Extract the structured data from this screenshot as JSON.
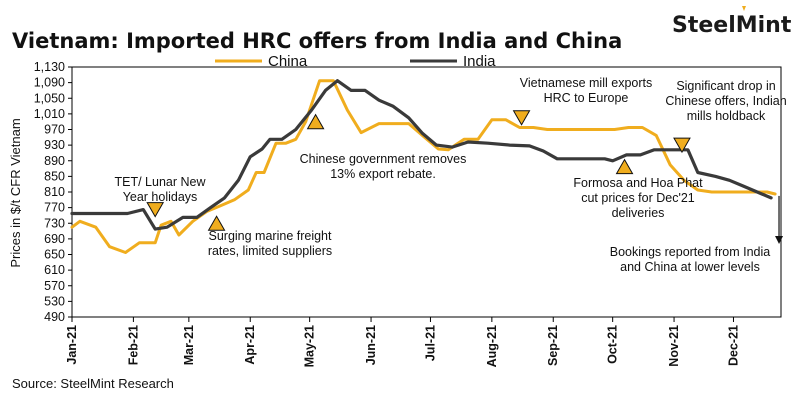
{
  "header": {
    "title": "Vietnam: Imported HRC offers from India and China",
    "brand": "SteelMint"
  },
  "source": "Source: SteelMint Research",
  "colors": {
    "china": "#F0AD1E",
    "india": "#3A3A3A",
    "marker": "#F0AD1E",
    "brand_accent": "#F0AD1E"
  },
  "chart_data": {
    "type": "line",
    "ylabel": "Prices in $/t CFR Vietnam",
    "xlabel": "",
    "ylim": [
      490,
      1130
    ],
    "yticks": [
      490,
      530,
      570,
      610,
      650,
      690,
      730,
      770,
      810,
      850,
      890,
      930,
      970,
      1010,
      1050,
      1090,
      1130
    ],
    "xlim": [
      "2021-01-01",
      "2021-12-25"
    ],
    "xticks": [
      "Jan-21",
      "Feb-21",
      "Mar-21",
      "Apr-21",
      "May-21",
      "Jun-21",
      "Jul-21",
      "Aug-21",
      "Sep-21",
      "Oct-21",
      "Nov-21",
      "Dec-21"
    ],
    "xtick_dates": [
      "2021-01-01",
      "2021-02-01",
      "2021-03-01",
      "2021-04-01",
      "2021-05-01",
      "2021-06-01",
      "2021-07-01",
      "2021-08-01",
      "2021-09-01",
      "2021-10-01",
      "2021-11-01",
      "2021-12-01"
    ],
    "legend": "top-center",
    "grid": false,
    "series": [
      {
        "name": "China",
        "points": [
          [
            "2021-01-01",
            720
          ],
          [
            "2021-01-05",
            735
          ],
          [
            "2021-01-13",
            720
          ],
          [
            "2021-01-20",
            670
          ],
          [
            "2021-01-28",
            655
          ],
          [
            "2021-02-04",
            680
          ],
          [
            "2021-02-12",
            680
          ],
          [
            "2021-02-15",
            725
          ],
          [
            "2021-02-20",
            735
          ],
          [
            "2021-02-24",
            700
          ],
          [
            "2021-03-03",
            735
          ],
          [
            "2021-03-10",
            760
          ],
          [
            "2021-03-17",
            775
          ],
          [
            "2021-03-24",
            790
          ],
          [
            "2021-03-31",
            815
          ],
          [
            "2021-04-04",
            860
          ],
          [
            "2021-04-08",
            860
          ],
          [
            "2021-04-14",
            935
          ],
          [
            "2021-04-19",
            935
          ],
          [
            "2021-04-24",
            945
          ],
          [
            "2021-04-29",
            990
          ],
          [
            "2021-05-06",
            1095
          ],
          [
            "2021-05-13",
            1095
          ],
          [
            "2021-05-20",
            1020
          ],
          [
            "2021-05-27",
            962
          ],
          [
            "2021-06-05",
            985
          ],
          [
            "2021-06-12",
            985
          ],
          [
            "2021-06-20",
            985
          ],
          [
            "2021-06-28",
            950
          ],
          [
            "2021-07-05",
            920
          ],
          [
            "2021-07-10",
            918
          ],
          [
            "2021-07-18",
            945
          ],
          [
            "2021-07-25",
            945
          ],
          [
            "2021-08-01",
            995
          ],
          [
            "2021-08-08",
            995
          ],
          [
            "2021-08-15",
            975
          ],
          [
            "2021-08-22",
            975
          ],
          [
            "2021-08-29",
            970
          ],
          [
            "2021-09-10",
            970
          ],
          [
            "2021-09-25",
            970
          ],
          [
            "2021-10-02",
            970
          ],
          [
            "2021-10-09",
            975
          ],
          [
            "2021-10-16",
            975
          ],
          [
            "2021-10-23",
            955
          ],
          [
            "2021-10-30",
            880
          ],
          [
            "2021-11-06",
            840
          ],
          [
            "2021-11-13",
            815
          ],
          [
            "2021-11-20",
            810
          ],
          [
            "2021-11-27",
            810
          ],
          [
            "2021-12-04",
            810
          ],
          [
            "2021-12-11",
            810
          ],
          [
            "2021-12-18",
            810
          ],
          [
            "2021-12-22",
            805
          ]
        ]
      },
      {
        "name": "India",
        "points": [
          [
            "2021-01-01",
            755
          ],
          [
            "2021-01-15",
            755
          ],
          [
            "2021-01-29",
            755
          ],
          [
            "2021-02-06",
            765
          ],
          [
            "2021-02-12",
            715
          ],
          [
            "2021-02-18",
            720
          ],
          [
            "2021-02-26",
            745
          ],
          [
            "2021-03-05",
            745
          ],
          [
            "2021-03-12",
            770
          ],
          [
            "2021-03-19",
            795
          ],
          [
            "2021-03-26",
            840
          ],
          [
            "2021-04-01",
            900
          ],
          [
            "2021-04-07",
            920
          ],
          [
            "2021-04-11",
            945
          ],
          [
            "2021-04-17",
            945
          ],
          [
            "2021-04-24",
            970
          ],
          [
            "2021-05-02",
            1020
          ],
          [
            "2021-05-09",
            1070
          ],
          [
            "2021-05-15",
            1095
          ],
          [
            "2021-05-22",
            1070
          ],
          [
            "2021-05-29",
            1070
          ],
          [
            "2021-06-05",
            1045
          ],
          [
            "2021-06-12",
            1030
          ],
          [
            "2021-06-20",
            1000
          ],
          [
            "2021-06-27",
            960
          ],
          [
            "2021-07-04",
            930
          ],
          [
            "2021-07-12",
            925
          ],
          [
            "2021-07-20",
            938
          ],
          [
            "2021-07-30",
            935
          ],
          [
            "2021-08-10",
            930
          ],
          [
            "2021-08-20",
            928
          ],
          [
            "2021-08-27",
            915
          ],
          [
            "2021-09-03",
            895
          ],
          [
            "2021-09-15",
            895
          ],
          [
            "2021-09-27",
            895
          ],
          [
            "2021-10-01",
            890
          ],
          [
            "2021-10-08",
            905
          ],
          [
            "2021-10-15",
            905
          ],
          [
            "2021-10-22",
            918
          ],
          [
            "2021-11-01",
            918
          ],
          [
            "2021-11-08",
            918
          ],
          [
            "2021-11-13",
            860
          ],
          [
            "2021-11-22",
            850
          ],
          [
            "2021-11-29",
            840
          ],
          [
            "2021-12-06",
            825
          ],
          [
            "2021-12-13",
            810
          ],
          [
            "2021-12-20",
            795
          ]
        ]
      }
    ],
    "annotations": [
      {
        "lines": [
          "TET/ Lunar New",
          "Year holidays"
        ],
        "date": "2021-02-12",
        "value": 765,
        "marker": "down"
      },
      {
        "lines": [
          "Surging marine freight",
          "rates, limited suppliers"
        ],
        "date": "2021-03-15",
        "value": 730,
        "marker": "up"
      },
      {
        "lines": [
          "Chinese government removes",
          "13% export rebate."
        ],
        "date": "2021-05-04",
        "value": 990,
        "marker": "up"
      },
      {
        "lines": [
          "Vietnamese mill exports",
          "HRC to Europe"
        ],
        "date": "2021-08-16",
        "value": 1000,
        "marker": "down"
      },
      {
        "lines": [
          "Formosa and Hoa Phat",
          "cut prices for Dec'21",
          "deliveries"
        ],
        "date": "2021-10-07",
        "value": 875,
        "marker": "up"
      },
      {
        "lines": [
          "Significant drop in",
          "Chinese offers, Indian",
          "mills holdback"
        ],
        "date": "2021-11-05",
        "value": 930,
        "marker": "down"
      },
      {
        "lines": [
          "Bookings reported from India",
          "and China at lower levels"
        ],
        "date": "2021-12-24",
        "value": 800,
        "marker": "arrow"
      }
    ]
  }
}
